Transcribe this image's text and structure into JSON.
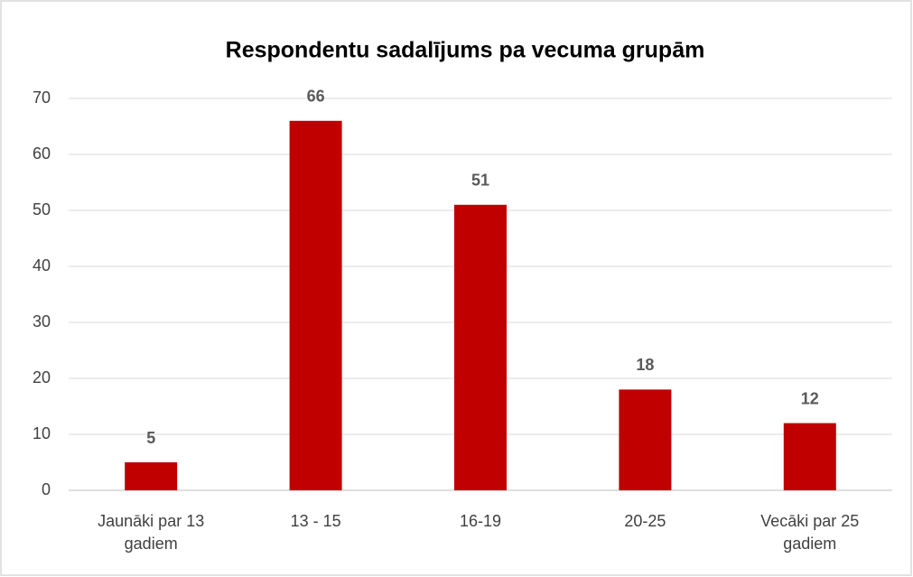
{
  "chart_data": {
    "type": "bar",
    "title": "Respondentu sadalījums pa vecuma grupām",
    "categories": [
      "Jaunāki par 13 gadiem",
      "13 - 15",
      "16-19",
      "20-25",
      "Vecāki par 25 gadiem"
    ],
    "values": [
      5,
      66,
      51,
      18,
      12
    ],
    "color": "#c00000",
    "ylim": [
      0,
      70
    ],
    "yticks": [
      0,
      10,
      20,
      30,
      40,
      50,
      60,
      70
    ],
    "grid": true
  }
}
